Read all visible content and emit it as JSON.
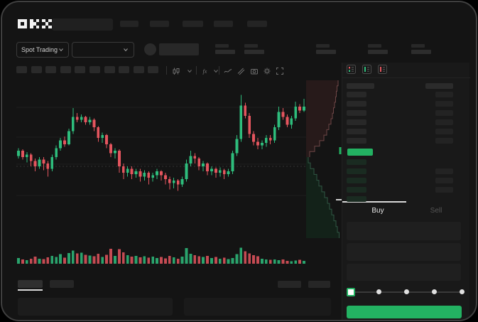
{
  "window": {
    "app": "OKX trading terminal"
  },
  "header": {
    "logo": "OKX",
    "nav_items": 5
  },
  "market_bar": {
    "selector_label": "Spot Trading",
    "stats_groups": 5
  },
  "toolbar": {
    "timeframe_slots": 10,
    "icons": [
      "candle-style-icon",
      "chevron-down-icon",
      "indicator-fx-icon",
      "chevron-down-icon",
      "line-style-icon",
      "draw-tools-icon",
      "camera-icon",
      "settings-icon",
      "fullscreen-icon"
    ]
  },
  "chart_data": {
    "type": "candlestick",
    "title": "",
    "xlabel": "",
    "ylabel": "",
    "axis_labels_visible": false,
    "gridlines": 4,
    "scale": "relative 0-100 (no visible axis ticks in screenshot)",
    "up_color": "#2ebd7c",
    "down_color": "#e4555e",
    "grid_color": "#1e1e1e",
    "candles": [
      [
        46,
        50,
        52,
        44
      ],
      [
        50,
        45,
        51,
        43
      ],
      [
        45,
        47,
        49,
        41
      ],
      [
        47,
        42,
        48,
        38
      ],
      [
        42,
        38,
        44,
        34
      ],
      [
        38,
        43,
        45,
        36
      ],
      [
        43,
        40,
        45,
        35
      ],
      [
        40,
        36,
        42,
        30
      ],
      [
        36,
        45,
        47,
        34
      ],
      [
        45,
        52,
        54,
        43
      ],
      [
        52,
        58,
        60,
        50
      ],
      [
        58,
        55,
        61,
        53
      ],
      [
        55,
        65,
        67,
        54
      ],
      [
        65,
        76,
        83,
        63
      ],
      [
        76,
        74,
        79,
        72
      ],
      [
        74,
        76,
        78,
        72
      ],
      [
        76,
        72,
        77,
        70
      ],
      [
        72,
        74,
        76,
        70
      ],
      [
        74,
        68,
        75,
        65
      ],
      [
        68,
        60,
        69,
        57
      ],
      [
        60,
        62,
        64,
        56
      ],
      [
        62,
        55,
        63,
        52
      ],
      [
        55,
        48,
        56,
        45
      ],
      [
        48,
        50,
        52,
        44
      ],
      [
        50,
        38,
        51,
        33
      ],
      [
        38,
        33,
        40,
        28
      ],
      [
        33,
        36,
        38,
        30
      ],
      [
        36,
        32,
        38,
        28
      ],
      [
        32,
        34,
        36,
        29
      ],
      [
        34,
        30,
        36,
        26
      ],
      [
        30,
        33,
        35,
        27
      ],
      [
        33,
        29,
        34,
        24
      ],
      [
        29,
        31,
        33,
        26
      ],
      [
        31,
        34,
        36,
        28
      ],
      [
        34,
        31,
        35,
        27
      ],
      [
        31,
        28,
        33,
        24
      ],
      [
        28,
        25,
        30,
        20
      ],
      [
        25,
        27,
        29,
        21
      ],
      [
        27,
        24,
        28,
        19
      ],
      [
        24,
        28,
        30,
        22
      ],
      [
        28,
        40,
        43,
        26
      ],
      [
        40,
        46,
        50,
        38
      ],
      [
        46,
        44,
        48,
        40
      ],
      [
        44,
        38,
        45,
        35
      ],
      [
        38,
        40,
        42,
        34
      ],
      [
        40,
        34,
        41,
        31
      ],
      [
        34,
        36,
        38,
        31
      ],
      [
        36,
        33,
        37,
        29
      ],
      [
        33,
        35,
        37,
        30
      ],
      [
        35,
        32,
        36,
        28
      ],
      [
        32,
        34,
        36,
        30
      ],
      [
        34,
        48,
        50,
        32
      ],
      [
        48,
        59,
        62,
        46
      ],
      [
        59,
        85,
        93,
        57
      ],
      [
        85,
        77,
        87,
        75
      ],
      [
        77,
        63,
        79,
        60
      ],
      [
        63,
        57,
        65,
        54
      ],
      [
        57,
        54,
        60,
        51
      ],
      [
        54,
        56,
        58,
        51
      ],
      [
        56,
        60,
        62,
        53
      ],
      [
        60,
        58,
        62,
        55
      ],
      [
        58,
        68,
        70,
        56
      ],
      [
        68,
        80,
        84,
        66
      ],
      [
        80,
        76,
        83,
        74
      ],
      [
        76,
        70,
        78,
        68
      ],
      [
        70,
        75,
        77,
        67
      ],
      [
        75,
        84,
        88,
        73
      ],
      [
        84,
        81,
        86,
        79
      ],
      [
        81,
        84,
        90,
        80
      ]
    ],
    "volumes": [
      34,
      26,
      20,
      30,
      42,
      30,
      28,
      38,
      46,
      40,
      56,
      36,
      62,
      78,
      60,
      64,
      52,
      48,
      44,
      58,
      40,
      52,
      88,
      46,
      85,
      66,
      50,
      42,
      46,
      38,
      44,
      36,
      42,
      34,
      40,
      32,
      46,
      38,
      30,
      42,
      92,
      58,
      50,
      44,
      40,
      46,
      34,
      40,
      30,
      36,
      28,
      34,
      56,
      94,
      72,
      60,
      50,
      44,
      30,
      26,
      22,
      26,
      20,
      24,
      16,
      14,
      18,
      22,
      16
    ]
  },
  "depth_chart": {
    "type": "area",
    "orientation": "vertical (asks on top, bids below)",
    "ask_profile": [
      0.9,
      0.87,
      0.85,
      0.83,
      0.8,
      0.77,
      0.74,
      0.7,
      0.64,
      0.58,
      0.5,
      0.38,
      0.24,
      0.1
    ],
    "bid_profile": [
      0.06,
      0.12,
      0.22,
      0.3,
      0.36,
      0.44,
      0.52,
      0.6,
      0.66,
      0.72,
      0.78,
      0.84,
      0.88,
      0.93
    ],
    "ask_fill": "#271a1a",
    "ask_edge": "#6e4646",
    "bid_fill": "#132219",
    "bid_edge": "#2f5743",
    "mid_marker_color": "#23b262",
    "low_marker_color": "#cfcfcf"
  },
  "orderbook": {
    "view_icons": [
      "book-both-icon",
      "book-bids-icon",
      "book-asks-icon"
    ],
    "sell_rows": 6,
    "buy_rows": 5,
    "buy_amount_rows": [
      1,
      2,
      3
    ],
    "last_price_color": "#23b262"
  },
  "trade_panel": {
    "tabs": [
      {
        "label": "Buy",
        "active": true
      },
      {
        "label": "Sell",
        "active": false
      }
    ],
    "fields": 3,
    "slider_stops": [
      0,
      25,
      50,
      75,
      100
    ],
    "slider_active_stop": 0,
    "submit_color": "#23b262"
  },
  "bottom_bar": {
    "tabs": 2,
    "active_tab": 0,
    "right_buttons": 2,
    "panels": 2
  },
  "colors": {
    "background": "#141414",
    "panel": "#191919",
    "placeholder": "#262626",
    "accent_green": "#23b262",
    "candle_up": "#2ebd7c",
    "candle_down": "#e4555e",
    "text_primary": "#e6e6e6",
    "text_muted": "#5a5a5a",
    "border": "#3a3a3a"
  }
}
